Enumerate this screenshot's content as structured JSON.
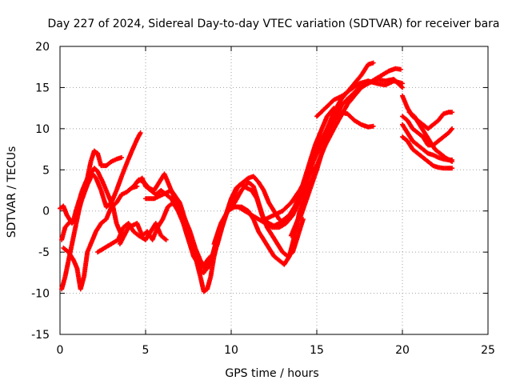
{
  "chart_data": {
    "type": "scatter",
    "title": "Day 227 of 2024, Sidereal Day-to-day VTEC variation (SDTVAR) for receiver bara",
    "xlabel": "GPS time / hours",
    "ylabel": "SDTVAR / TECUs",
    "xlim": [
      0,
      25
    ],
    "ylim": [
      -15,
      20
    ],
    "xticks": [
      "0",
      "5",
      "10",
      "15",
      "20",
      "25"
    ],
    "yticks": [
      "20",
      "15",
      "10",
      "5",
      "0",
      "-5",
      "-10",
      "-15"
    ],
    "grid": true,
    "marker": "+",
    "color": "#ff0000",
    "series": [
      {
        "x": [
          0.0,
          0.2,
          0.4,
          0.7,
          1.0,
          1.3,
          1.6,
          1.9,
          2.1,
          2.4,
          2.7,
          3.0,
          3.3,
          3.6,
          3.9,
          4.2,
          4.5,
          4.7
        ],
        "y": [
          0.3,
          0.6,
          -0.5,
          -1.5,
          -0.5,
          1.5,
          3.2,
          4.5,
          4.0,
          2.5,
          0.5,
          1.0,
          2.5,
          4.2,
          5.8,
          7.3,
          8.7,
          9.5
        ]
      },
      {
        "x": [
          0.1,
          0.3,
          0.5,
          0.8,
          1.0,
          1.3,
          1.5,
          1.8,
          2.0,
          2.2,
          2.5,
          2.8,
          3.1,
          3.3,
          3.6
        ],
        "y": [
          -3.5,
          -2.0,
          -1.5,
          -1.0,
          0.5,
          2.5,
          3.5,
          4.5,
          5.2,
          4.8,
          3.5,
          2.0,
          0.5,
          -1.5,
          -3.0
        ]
      },
      {
        "x": [
          0.1,
          0.3,
          0.5,
          0.7,
          0.9,
          1.1,
          1.3,
          1.6,
          1.8,
          2.0,
          2.2,
          2.4,
          2.7,
          3.0,
          3.3,
          3.6
        ],
        "y": [
          -9.5,
          -8.0,
          -6.0,
          -4.0,
          -2.0,
          0.0,
          2.0,
          4.0,
          6.0,
          7.3,
          7.0,
          5.5,
          5.5,
          6.0,
          6.3,
          6.5
        ]
      },
      {
        "x": [
          0.2,
          0.5,
          0.8,
          1.0,
          1.2,
          1.4,
          1.6,
          1.9,
          2.1,
          2.4,
          2.7,
          3.0,
          3.3,
          3.6,
          3.9,
          4.2,
          4.5
        ],
        "y": [
          -4.5,
          -5.0,
          -6.0,
          -7.0,
          -9.5,
          -8.0,
          -5.0,
          -3.5,
          -2.5,
          -1.5,
          -1.0,
          0.5,
          1.0,
          2.0,
          2.3,
          2.8,
          3.0
        ]
      },
      {
        "x": [
          2.2,
          2.6,
          3.0,
          3.4,
          3.7,
          4.0,
          4.3,
          4.6,
          5.0,
          5.3,
          5.6,
          5.9,
          6.2
        ],
        "y": [
          -5.0,
          -4.5,
          -4.0,
          -3.5,
          -2.0,
          -1.5,
          -2.5,
          -3.0,
          -3.5,
          -2.5,
          -1.5,
          -3.0,
          -3.5
        ]
      },
      {
        "x": [
          3.5,
          4.0,
          4.5,
          4.8,
          5.1,
          5.4,
          5.7,
          6.0,
          6.3,
          6.6,
          6.9,
          7.2,
          7.5,
          7.8,
          8.1,
          8.4,
          8.6,
          8.8
        ],
        "y": [
          -4.0,
          -2.0,
          -1.5,
          -3.0,
          -2.5,
          -3.5,
          -2.0,
          -1.0,
          0.5,
          1.0,
          0.0,
          -1.5,
          -3.5,
          -5.5,
          -6.5,
          -6.8,
          -6.0,
          -5.5
        ]
      },
      {
        "x": [
          4.0,
          4.3,
          4.6,
          4.9,
          5.2,
          5.5,
          5.8,
          6.1,
          6.4,
          6.7,
          7.0,
          7.3,
          7.6,
          7.9,
          8.2,
          8.5,
          8.8,
          9.0
        ],
        "y": [
          2.5,
          3.0,
          3.8,
          3.5,
          2.8,
          2.5,
          3.5,
          4.5,
          3.0,
          1.5,
          0.5,
          -1.0,
          -2.5,
          -4.5,
          -6.0,
          -7.0,
          -6.5,
          -5.0
        ]
      },
      {
        "x": [
          4.5,
          4.8,
          5.0,
          5.3,
          5.6,
          5.9,
          6.2,
          6.5,
          6.8,
          7.1,
          7.4,
          7.7,
          8.0,
          8.3,
          8.6,
          8.9,
          9.2
        ],
        "y": [
          3.5,
          4.0,
          3.0,
          2.5,
          2.0,
          2.5,
          2.0,
          1.5,
          0.5,
          -0.5,
          -2.5,
          -4.5,
          -6.0,
          -7.5,
          -7.0,
          -5.5,
          -3.0
        ]
      },
      {
        "x": [
          5.0,
          5.5,
          6.0,
          6.5,
          7.0,
          7.3,
          7.6,
          7.9,
          8.2,
          8.4,
          8.6,
          8.8,
          9.0,
          9.3
        ],
        "y": [
          1.5,
          1.5,
          2.0,
          2.5,
          1.0,
          -1.0,
          -3.0,
          -5.5,
          -8.0,
          -9.8,
          -9.5,
          -8.0,
          -5.5,
          -3.0
        ]
      },
      {
        "x": [
          8.4,
          8.8,
          9.2,
          9.6,
          10.0,
          10.3,
          10.6,
          10.9,
          11.2,
          11.5,
          11.8,
          12.1,
          12.4,
          12.7,
          13.0,
          13.3,
          13.6,
          13.9,
          14.2
        ],
        "y": [
          -7.5,
          -6.0,
          -4.0,
          -1.0,
          1.5,
          2.8,
          3.2,
          2.8,
          2.5,
          1.5,
          -0.5,
          -2.0,
          -3.0,
          -4.0,
          -5.0,
          -5.5,
          -5.0,
          -3.0,
          -1.0
        ]
      },
      {
        "x": [
          9.0,
          9.4,
          9.8,
          10.2,
          10.6,
          11.0,
          11.3,
          11.6,
          11.9,
          12.2,
          12.5,
          12.8,
          13.1,
          13.4,
          13.7,
          14.0,
          14.3,
          14.6
        ],
        "y": [
          -4.0,
          -1.5,
          0.0,
          0.5,
          0.5,
          0.0,
          -1.0,
          -2.5,
          -3.5,
          -4.5,
          -5.5,
          -6.0,
          -6.5,
          -5.5,
          -3.0,
          0.0,
          2.0,
          3.5
        ]
      },
      {
        "x": [
          9.3,
          9.7,
          10.1,
          10.4,
          10.7,
          11.0,
          11.3,
          11.6,
          11.9,
          12.2,
          12.5,
          12.8,
          13.1,
          13.4,
          13.7,
          14.0,
          14.3,
          14.6,
          15.0
        ],
        "y": [
          -3.0,
          -0.5,
          1.5,
          3.0,
          3.5,
          4.0,
          4.2,
          3.5,
          2.5,
          1.0,
          0.0,
          -1.0,
          -1.5,
          -1.0,
          0.0,
          1.5,
          3.0,
          4.5,
          5.5
        ]
      },
      {
        "x": [
          9.8,
          10.2,
          10.6,
          11.0,
          11.3,
          11.6,
          11.9,
          12.2,
          12.5,
          12.8,
          13.1,
          13.4,
          13.7,
          14.0,
          14.3,
          14.6,
          14.9,
          15.2
        ],
        "y": [
          0.0,
          1.0,
          2.5,
          3.5,
          3.0,
          1.0,
          -1.0,
          -1.5,
          -1.8,
          -1.5,
          -1.0,
          -0.5,
          0.5,
          2.0,
          4.0,
          6.0,
          8.0,
          9.5
        ]
      },
      {
        "x": [
          10.0,
          10.4,
          10.8,
          11.2,
          11.6,
          12.0,
          12.4,
          12.8,
          13.2,
          13.6,
          14.0,
          14.4,
          14.8,
          15.2,
          15.6,
          16.0
        ],
        "y": [
          0.5,
          0.5,
          0.0,
          -0.5,
          -1.0,
          -1.5,
          -2.0,
          -2.0,
          -1.5,
          -0.5,
          1.5,
          4.0,
          7.0,
          9.5,
          11.5,
          12.5
        ]
      },
      {
        "x": [
          12.0,
          12.5,
          13.0,
          13.5,
          14.0,
          14.4,
          14.8,
          15.2,
          15.6,
          16.0,
          16.4,
          16.8,
          17.2,
          17.6,
          18.0,
          18.3
        ],
        "y": [
          -1.0,
          -0.5,
          0.0,
          1.0,
          2.5,
          4.0,
          6.0,
          8.0,
          10.0,
          12.0,
          13.5,
          14.5,
          15.5,
          16.5,
          17.8,
          18.0
        ]
      },
      {
        "x": [
          13.5,
          14.0,
          14.5,
          15.0,
          15.5,
          16.0,
          16.4,
          16.8,
          17.2,
          17.6,
          18.0,
          18.4,
          18.8,
          19.2,
          19.6,
          19.9
        ],
        "y": [
          -3.0,
          -0.5,
          2.5,
          5.5,
          8.0,
          10.0,
          11.5,
          13.0,
          14.0,
          15.0,
          15.5,
          16.0,
          16.5,
          17.0,
          17.3,
          17.2
        ]
      },
      {
        "x": [
          14.0,
          14.5,
          15.0,
          15.5,
          16.0,
          16.5,
          17.0,
          17.5,
          18.0,
          18.5,
          19.0,
          19.5,
          20.0
        ],
        "y": [
          -1.0,
          2.0,
          5.0,
          8.5,
          11.0,
          13.0,
          14.0,
          15.0,
          15.5,
          16.0,
          15.8,
          16.0,
          15.0
        ]
      },
      {
        "x": [
          14.5,
          15.0,
          15.5,
          16.0,
          16.4,
          16.8,
          17.2,
          17.6,
          18.0,
          18.3
        ],
        "y": [
          5.0,
          7.5,
          9.5,
          11.0,
          12.0,
          11.8,
          11.0,
          10.5,
          10.2,
          10.3
        ]
      },
      {
        "x": [
          15.0,
          15.5,
          16.0,
          16.5,
          17.0,
          17.5,
          18.0,
          18.5,
          19.0,
          19.5,
          20.0
        ],
        "y": [
          11.5,
          12.5,
          13.5,
          14.0,
          14.8,
          15.5,
          15.8,
          15.5,
          15.3,
          15.8,
          15.5
        ]
      },
      {
        "x": [
          20.0,
          20.3,
          20.6,
          20.9,
          21.2,
          21.5,
          21.8,
          22.1,
          22.4,
          22.7,
          22.9
        ],
        "y": [
          14.0,
          12.5,
          11.5,
          11.0,
          10.5,
          10.0,
          10.5,
          11.0,
          11.8,
          12.0,
          12.0
        ]
      },
      {
        "x": [
          20.0,
          20.3,
          20.6,
          20.9,
          21.2,
          21.5,
          21.8,
          22.1,
          22.4,
          22.7,
          22.9
        ],
        "y": [
          11.5,
          11.0,
          10.0,
          9.5,
          9.0,
          8.0,
          8.0,
          8.5,
          9.0,
          9.5,
          10.0
        ]
      },
      {
        "x": [
          20.0,
          20.3,
          20.6,
          20.9,
          21.2,
          21.5,
          21.8,
          22.1,
          22.4,
          22.7,
          22.9
        ],
        "y": [
          10.5,
          9.5,
          8.5,
          8.0,
          7.5,
          7.0,
          6.8,
          6.5,
          6.3,
          6.2,
          6.2
        ]
      },
      {
        "x": [
          20.0,
          20.3,
          20.6,
          20.9,
          21.2,
          21.5,
          21.8,
          22.1,
          22.4,
          22.7,
          22.9
        ],
        "y": [
          9.0,
          8.5,
          7.5,
          7.0,
          6.5,
          6.0,
          5.5,
          5.3,
          5.2,
          5.2,
          5.2
        ]
      },
      {
        "x": [
          20.4,
          20.7,
          21.0,
          21.3,
          21.6,
          21.9,
          22.2,
          22.5,
          22.9
        ],
        "y": [
          12.0,
          11.5,
          10.5,
          9.5,
          8.5,
          7.5,
          7.0,
          6.5,
          6.0
        ]
      }
    ]
  }
}
